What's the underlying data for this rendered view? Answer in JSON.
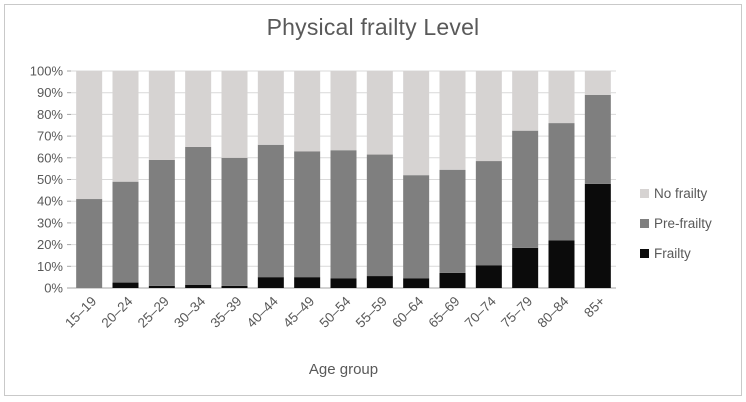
{
  "chart_data": {
    "type": "bar",
    "stacked": true,
    "title": "Physical frailty Level",
    "xlabel": "Age group",
    "ylabel": "",
    "ylim": [
      0,
      100
    ],
    "ytick_step": 10,
    "yticks": [
      "0%",
      "10%",
      "20%",
      "30%",
      "40%",
      "50%",
      "60%",
      "70%",
      "80%",
      "90%",
      "100%"
    ],
    "categories": [
      "15–19",
      "20–24",
      "25–29",
      "30–34",
      "35–39",
      "40–44",
      "45–49",
      "50–54",
      "55–59",
      "60–64",
      "65–69",
      "70–74",
      "75–79",
      "80–84",
      "85+"
    ],
    "series": [
      {
        "name": "Frailty",
        "color": "#0b0b0b",
        "values": [
          0,
          2.5,
          1,
          1.5,
          1,
          5,
          5,
          4.5,
          5.5,
          4.5,
          7,
          10.5,
          18.5,
          22,
          48
        ]
      },
      {
        "name": "Pre-frailty",
        "color": "#7f7f7f",
        "values": [
          41,
          46.5,
          58,
          63.5,
          59,
          61,
          58,
          59,
          56,
          47.5,
          47.5,
          48,
          54,
          54,
          41
        ]
      },
      {
        "name": "No frailty",
        "color": "#d6d3d2",
        "values": [
          59,
          51,
          41,
          35,
          40,
          34,
          37,
          36.5,
          38.5,
          48,
          45.5,
          41.5,
          27.5,
          24,
          11
        ]
      }
    ],
    "legend": {
      "position": "right",
      "items": [
        {
          "label": "No frailty",
          "color": "#d6d3d2"
        },
        {
          "label": "Pre-frailty",
          "color": "#7f7f7f"
        },
        {
          "label": "Frailty",
          "color": "#0b0b0b"
        }
      ]
    },
    "grid": true,
    "colors": {
      "grid": "#d9d9d9",
      "axis_line": "#a6a6a6",
      "tick": "#a6a6a6",
      "text": "#595959",
      "frame_border": "#c9c9c9",
      "background": "#ffffff"
    }
  }
}
